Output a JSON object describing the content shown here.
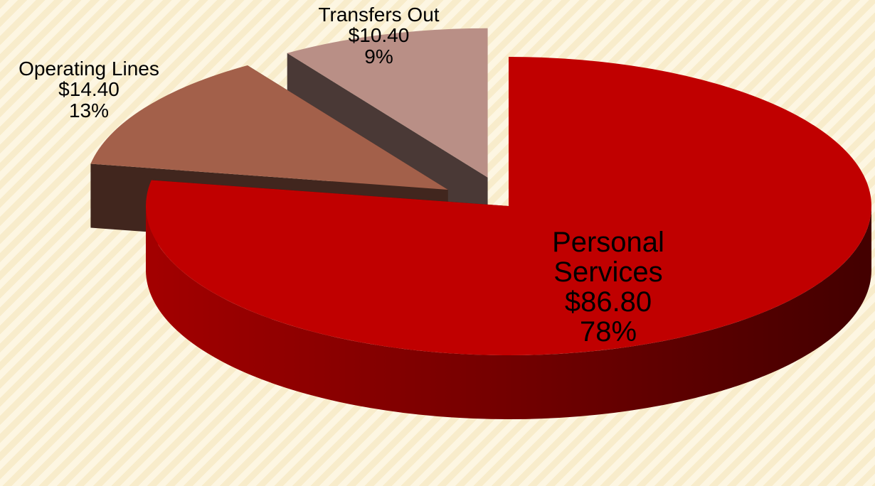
{
  "chart_data": {
    "type": "pie",
    "categories": [
      "Personal Services",
      "Operating Lines",
      "Transfers Out"
    ],
    "values": [
      86.8,
      14.4,
      10.4
    ],
    "value_labels": [
      "$86.80",
      "$14.40",
      "$10.40"
    ],
    "percents": [
      78,
      13,
      9
    ],
    "percent_labels": [
      "78%",
      "13%",
      "9%"
    ],
    "colors": [
      "#c00000",
      "#a3604a",
      "#b98f86"
    ]
  }
}
